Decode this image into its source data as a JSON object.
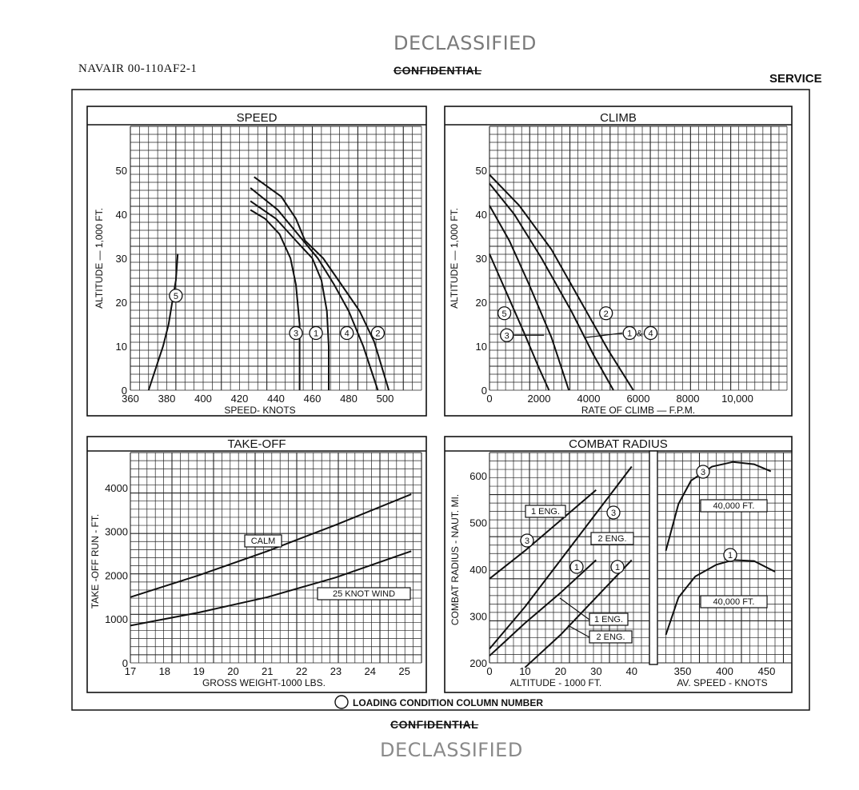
{
  "header": {
    "doc_id": "NAVAIR 00-110AF2-1",
    "stamp_declassified": "DECLASSIFIED",
    "classification": "CONFIDENTIAL",
    "section": "SERVICE"
  },
  "footer": {
    "classification": "CONFIDENTIAL",
    "stamp_declassified": "DECLASSIFIED",
    "legend_text": "LOADING CONDITION COLUMN NUMBER"
  },
  "chart_data": [
    {
      "id": "speed",
      "type": "line",
      "title": "SPEED",
      "xlabel": "SPEED- KNOTS",
      "ylabel": "ALTITUDE — 1,000 FT.",
      "xlim": [
        360,
        520
      ],
      "ylim": [
        0,
        60
      ],
      "xticks": [
        360,
        380,
        400,
        420,
        440,
        460,
        480,
        500
      ],
      "yticks": [
        0,
        10,
        20,
        30,
        40,
        50
      ],
      "grid": true,
      "series": [
        {
          "name": "5",
          "label_at": [
            385,
            21.5
          ],
          "points": [
            [
              370,
              0
            ],
            [
              374,
              5
            ],
            [
              378,
              10
            ],
            [
              381,
              15
            ],
            [
              383,
              20
            ],
            [
              385,
              25
            ],
            [
              386,
              31
            ]
          ]
        },
        {
          "name": "3",
          "label_at": [
            451,
            13
          ],
          "points": [
            [
              426,
              41
            ],
            [
              434,
              39
            ],
            [
              442,
              35.5
            ],
            [
              448,
              30
            ],
            [
              451,
              24
            ],
            [
              453,
              15
            ],
            [
              453,
              0
            ]
          ]
        },
        {
          "name": "1",
          "label_at": [
            462,
            13
          ],
          "points": [
            [
              426,
              43
            ],
            [
              440,
              39
            ],
            [
              451,
              34
            ],
            [
              460,
              30
            ],
            [
              465,
              25
            ],
            [
              468,
              18
            ],
            [
              469,
              10
            ],
            [
              469,
              0
            ]
          ]
        },
        {
          "name": "4",
          "label_at": [
            479,
            13
          ],
          "points": [
            [
              426,
              46
            ],
            [
              441,
              41
            ],
            [
              453,
              35
            ],
            [
              463,
              30
            ],
            [
              472,
              24
            ],
            [
              480,
              18
            ],
            [
              488,
              10
            ],
            [
              496,
              0
            ]
          ]
        },
        {
          "name": "2",
          "label_at": [
            496,
            13
          ],
          "points": [
            [
              428,
              48.5
            ],
            [
              443,
              44
            ],
            [
              451,
              39
            ],
            [
              456,
              34
            ],
            [
              466,
              30
            ],
            [
              476,
              24
            ],
            [
              486,
              18
            ],
            [
              494,
              11
            ],
            [
              502,
              0
            ]
          ]
        }
      ]
    },
    {
      "id": "climb",
      "type": "line",
      "title": "CLIMB",
      "xlabel": "RATE OF CLIMB — F.P.M.",
      "ylabel": "ALTITUDE — 1,000 FT.",
      "xlim": [
        0,
        12000
      ],
      "ylim": [
        0,
        60
      ],
      "xticks": [
        0,
        2000,
        4000,
        6000,
        8000,
        10000
      ],
      "xticklabels": [
        "0",
        "2000",
        "4000",
        "6000",
        "8000",
        "10,000"
      ],
      "yticks": [
        0,
        10,
        20,
        30,
        40,
        50
      ],
      "grid": true,
      "series": [
        {
          "name": "5",
          "label_at": [
            600,
            17.5
          ],
          "points": [
            [
              0,
              31
            ],
            [
              700,
              22
            ],
            [
              1400,
              13
            ],
            [
              2000,
              5
            ],
            [
              2400,
              0
            ]
          ]
        },
        {
          "name": "3",
          "label_at": [
            700,
            12.5
          ],
          "points": [
            [
              0,
              42
            ],
            [
              800,
              34
            ],
            [
              1600,
              24
            ],
            [
              2500,
              12
            ],
            [
              3200,
              0
            ]
          ]
        },
        {
          "name": "1 & 4",
          "label_at": [
            6000,
            13
          ],
          "points": [
            [
              0,
              47
            ],
            [
              1000,
              40
            ],
            [
              2100,
              30
            ],
            [
              3300,
              18
            ],
            [
              4200,
              8
            ],
            [
              5000,
              0
            ]
          ]
        },
        {
          "name": "2",
          "label_at": [
            4700,
            17
          ],
          "points": [
            [
              0,
              49
            ],
            [
              1200,
              42
            ],
            [
              2500,
              32
            ],
            [
              3700,
              20
            ],
            [
              4800,
              9
            ],
            [
              5800,
              0
            ]
          ]
        }
      ]
    },
    {
      "id": "takeoff",
      "type": "line",
      "title": "TAKE-OFF",
      "xlabel": "GROSS WEIGHT-1000 LBS.",
      "ylabel": "TAKE -OFF RUN - FT.",
      "xlim": [
        17,
        25.5
      ],
      "ylim": [
        0,
        4800
      ],
      "xticks": [
        17,
        18,
        19,
        20,
        21,
        22,
        23,
        24,
        25
      ],
      "yticks": [
        0,
        1000,
        2000,
        3000,
        4000
      ],
      "grid": true,
      "series": [
        {
          "name": "CALM",
          "label_at": [
            20.8,
            2750
          ],
          "points": [
            [
              17,
              1500
            ],
            [
              19,
              2000
            ],
            [
              21,
              2550
            ],
            [
              23,
              3150
            ],
            [
              25.2,
              3850
            ]
          ]
        },
        {
          "name": "25 KNOT WIND",
          "label_at": [
            24,
            1580
          ],
          "points": [
            [
              17,
              850
            ],
            [
              19,
              1150
            ],
            [
              21,
              1500
            ],
            [
              23,
              1950
            ],
            [
              25.2,
              2550
            ]
          ]
        }
      ]
    },
    {
      "id": "combat_radius",
      "type": "line",
      "title": "COMBAT RADIUS",
      "panels": [
        {
          "xlabel": "ALTITUDE - 1000 FT.",
          "ylabel": "COMBAT RADIUS - NAUT. MI.",
          "xlim": [
            0,
            45
          ],
          "ylim": [
            200,
            650
          ],
          "xticks": [
            0,
            10,
            20,
            30,
            40
          ],
          "yticks": [
            200,
            300,
            400,
            500,
            600
          ],
          "series": [
            {
              "name": "3 - 1 ENG.",
              "points": [
                [
                  0,
                  380
                ],
                [
                  10,
                  440
                ],
                [
                  20,
                  505
                ],
                [
                  30,
                  570
                ]
              ]
            },
            {
              "name": "3 - 2 ENG.",
              "points": [
                [
                  0,
                  230
                ],
                [
                  10,
                  320
                ],
                [
                  20,
                  420
                ],
                [
                  30,
                  520
                ],
                [
                  40,
                  620
                ]
              ]
            },
            {
              "name": "1 - 1 ENG.",
              "points": [
                [
                  0,
                  215
                ],
                [
                  10,
                  285
                ],
                [
                  20,
                  350
                ],
                [
                  30,
                  420
                ]
              ]
            },
            {
              "name": "1 - 2 ENG.",
              "points": [
                [
                  10,
                  190
                ],
                [
                  20,
                  260
                ],
                [
                  30,
                  340
                ],
                [
                  40,
                  420
                ]
              ]
            }
          ],
          "annotations": [
            "1 ENG.",
            "2 ENG.",
            "1 ENG.",
            "2 ENG."
          ]
        },
        {
          "xlabel": "AV. SPEED - KNOTS",
          "xlim": [
            320,
            480
          ],
          "ylim": [
            200,
            650
          ],
          "xticks": [
            350,
            400,
            450
          ],
          "series": [
            {
              "name": "3 - 40,000 FT.",
              "points": [
                [
                  330,
                  440
                ],
                [
                  345,
                  540
                ],
                [
                  360,
                  590
                ],
                [
                  385,
                  620
                ],
                [
                  410,
                  630
                ],
                [
                  435,
                  625
                ],
                [
                  455,
                  610
                ]
              ]
            },
            {
              "name": "1 - 40,000 FT.",
              "points": [
                [
                  330,
                  260
                ],
                [
                  345,
                  340
                ],
                [
                  365,
                  385
                ],
                [
                  390,
                  410
                ],
                [
                  410,
                  420
                ],
                [
                  435,
                  418
                ],
                [
                  460,
                  395
                ]
              ]
            }
          ],
          "annotations": [
            "40,000 FT.",
            "40,000 FT."
          ]
        }
      ]
    }
  ]
}
